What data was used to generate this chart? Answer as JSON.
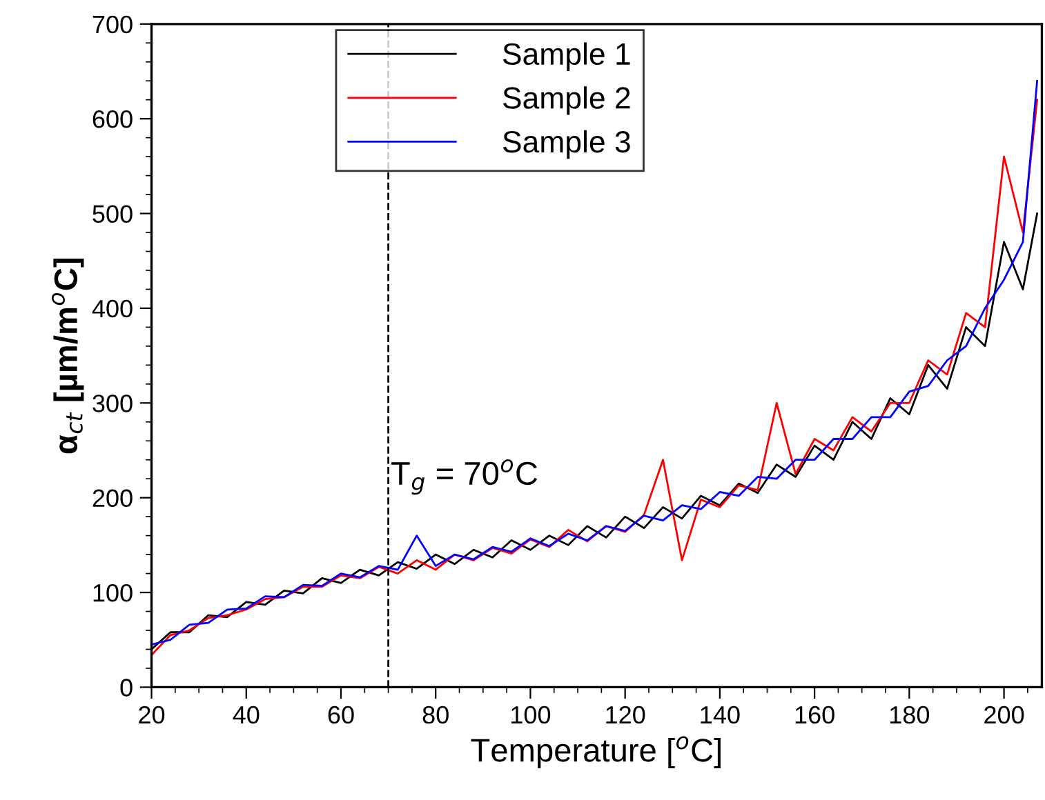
{
  "chart_data": {
    "type": "line",
    "xlabel": "Temperature [$^{o}$C]",
    "ylabel": "α$_{ct}$ [µm/m$^{o}$C]",
    "x": [
      20,
      24,
      28,
      32,
      36,
      40,
      44,
      48,
      52,
      56,
      60,
      64,
      68,
      72,
      76,
      80,
      84,
      88,
      92,
      96,
      100,
      104,
      108,
      112,
      116,
      120,
      124,
      128,
      132,
      136,
      140,
      144,
      148,
      152,
      156,
      160,
      164,
      168,
      172,
      176,
      180,
      184,
      188,
      192,
      196,
      200,
      204,
      207
    ],
    "series": [
      {
        "name": "Sample 1",
        "color": "#000000",
        "values": [
          40,
          58,
          58,
          76,
          74,
          90,
          87,
          102,
          99,
          115,
          110,
          124,
          118,
          132,
          125,
          140,
          130,
          145,
          137,
          155,
          145,
          160,
          150,
          170,
          158,
          180,
          168,
          190,
          178,
          202,
          192,
          215,
          205,
          235,
          222,
          255,
          240,
          280,
          262,
          305,
          288,
          340,
          315,
          380,
          360,
          470,
          420,
          500
        ]
      },
      {
        "name": "Sample 2",
        "color": "#ff0000",
        "values": [
          34,
          55,
          60,
          73,
          76,
          82,
          93,
          95,
          106,
          106,
          118,
          115,
          127,
          120,
          134,
          124,
          140,
          134,
          147,
          141,
          156,
          148,
          166,
          154,
          170,
          164,
          182,
          240,
          134,
          198,
          190,
          213,
          208,
          300,
          225,
          262,
          250,
          285,
          270,
          300,
          300,
          345,
          330,
          395,
          380,
          560,
          480,
          620
        ]
      },
      {
        "name": "Sample 3",
        "color": "#0000ff",
        "values": [
          45,
          50,
          66,
          68,
          82,
          83,
          96,
          95,
          108,
          107,
          120,
          116,
          128,
          124,
          160,
          128,
          140,
          135,
          148,
          143,
          157,
          149,
          162,
          155,
          170,
          165,
          181,
          176,
          192,
          188,
          206,
          202,
          222,
          220,
          240,
          240,
          262,
          262,
          285,
          285,
          312,
          318,
          345,
          360,
          400,
          430,
          470,
          640
        ]
      }
    ],
    "xlim": [
      20,
      208
    ],
    "ylim": [
      0,
      700
    ],
    "xticks": [
      20,
      40,
      60,
      80,
      100,
      120,
      140,
      160,
      180,
      200
    ],
    "yticks": [
      0,
      100,
      200,
      300,
      400,
      500,
      600,
      700
    ],
    "ref_lines": [
      {
        "axis": "x",
        "value": 70,
        "label": "T$_{g}$ = 70$^{o}$C",
        "color": "#000000",
        "line_style": "dashed"
      }
    ],
    "legend": "top",
    "grid": false,
    "line_style": "solid",
    "marker": "none"
  }
}
